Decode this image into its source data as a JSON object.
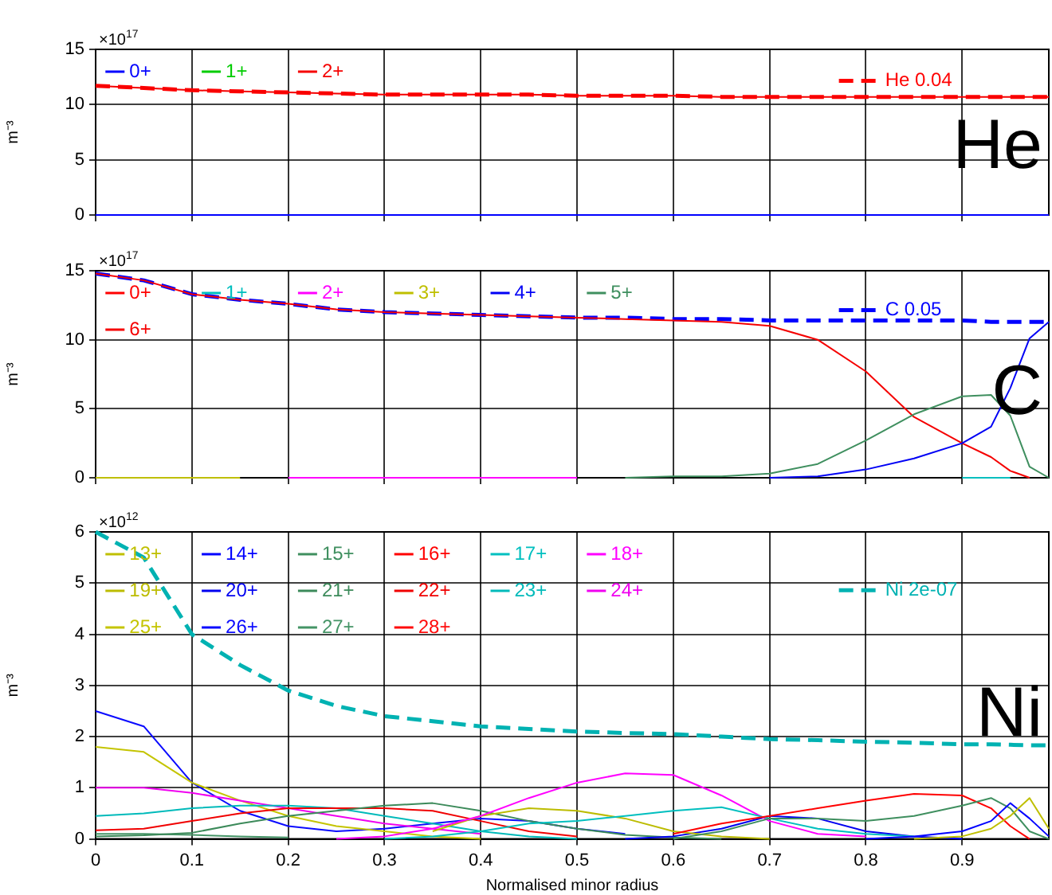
{
  "chart_data": [
    {
      "type": "line",
      "ylabel": "m⁻³",
      "annotations": [
        "×10$^{17}$",
        "He"
      ],
      "x": [
        0,
        0.05,
        0.1,
        0.15,
        0.2,
        0.25,
        0.3,
        0.35,
        0.4,
        0.45,
        0.5,
        0.55,
        0.6,
        0.65,
        0.7,
        0.75,
        0.8,
        0.85,
        0.9,
        0.93,
        0.95,
        0.97,
        0.99
      ],
      "xlim": [
        0,
        0.99
      ],
      "xticks": [
        0,
        0.1,
        0.2,
        0.3,
        0.4,
        0.5,
        0.6,
        0.7,
        0.8,
        0.9
      ],
      "ylim": [
        0,
        15
      ],
      "yticks": [
        0,
        5,
        10,
        15
      ],
      "grid": true,
      "legend": "top",
      "marker": "none",
      "tick_labels": "y",
      "series": [
        {
          "name": "He 0.04",
          "color": "#ff0000",
          "line_style": "dashed",
          "values": [
            11.7,
            11.5,
            11.3,
            11.2,
            11.1,
            11.0,
            10.9,
            10.9,
            10.9,
            10.9,
            10.8,
            10.8,
            10.8,
            10.7,
            10.7,
            10.7,
            10.7,
            10.7,
            10.7,
            10.7,
            10.7,
            10.7,
            10.7
          ]
        },
        {
          "name": "0+",
          "color": "#0000ff",
          "line_style": "solid",
          "values": [
            0,
            0,
            0,
            0,
            0,
            0,
            0,
            0,
            0,
            0,
            0,
            0,
            0,
            0,
            0,
            0,
            0,
            0,
            0,
            0,
            0,
            0,
            0
          ]
        },
        {
          "name": "1+",
          "color": "#00cc00",
          "line_style": "solid",
          "values": [
            null,
            null,
            null,
            null,
            null,
            null,
            null,
            null,
            null,
            null,
            null,
            null,
            null,
            null,
            null,
            null,
            null,
            null,
            null,
            null,
            null,
            null,
            null
          ]
        },
        {
          "name": "2+",
          "color": "#f50000",
          "line_style": "solid",
          "values": [
            11.7,
            11.5,
            11.3,
            11.2,
            11.1,
            11.0,
            10.9,
            10.9,
            10.9,
            10.9,
            10.8,
            10.8,
            10.8,
            10.7,
            10.7,
            10.7,
            10.7,
            10.7,
            10.7,
            10.7,
            10.7,
            10.7,
            10.7
          ]
        }
      ]
    },
    {
      "type": "line",
      "ylabel": "m⁻³",
      "annotations": [
        "×10$^{17}$",
        "C"
      ],
      "x": [
        0,
        0.05,
        0.1,
        0.15,
        0.2,
        0.25,
        0.3,
        0.35,
        0.4,
        0.45,
        0.5,
        0.55,
        0.6,
        0.65,
        0.7,
        0.75,
        0.8,
        0.85,
        0.9,
        0.93,
        0.95,
        0.97,
        0.99
      ],
      "xlim": [
        0,
        0.99
      ],
      "xticks": [
        0,
        0.1,
        0.2,
        0.3,
        0.4,
        0.5,
        0.6,
        0.7,
        0.8,
        0.9
      ],
      "ylim": [
        0,
        15
      ],
      "yticks": [
        0,
        5,
        10,
        15
      ],
      "grid": true,
      "legend": "top",
      "marker": "none",
      "tick_labels": "y",
      "series": [
        {
          "name": "C 0.05",
          "color": "#0000ff",
          "line_style": "dashed",
          "values": [
            14.8,
            14.3,
            13.3,
            12.9,
            12.6,
            12.2,
            12.0,
            11.9,
            11.8,
            11.7,
            11.6,
            11.6,
            11.5,
            11.5,
            11.4,
            11.4,
            11.4,
            11.4,
            11.4,
            11.3,
            11.3,
            11.3,
            11.3
          ]
        },
        {
          "name": "0+",
          "color": "#ff0000",
          "line_style": "solid",
          "values": [
            null,
            null,
            null,
            null,
            null,
            null,
            null,
            null,
            null,
            null,
            null,
            null,
            null,
            null,
            null,
            null,
            null,
            null,
            null,
            null,
            null,
            null,
            null
          ]
        },
        {
          "name": "1+",
          "color": "#00bfbf",
          "line_style": "solid",
          "values": [
            null,
            null,
            null,
            null,
            null,
            null,
            null,
            null,
            null,
            null,
            null,
            null,
            null,
            null,
            null,
            null,
            null,
            null,
            0,
            0,
            0,
            null,
            null
          ]
        },
        {
          "name": "2+",
          "color": "#ff00ff",
          "line_style": "solid",
          "values": [
            null,
            null,
            null,
            null,
            0,
            0,
            0,
            0,
            0,
            0,
            0,
            null,
            null,
            null,
            null,
            null,
            null,
            null,
            null,
            null,
            null,
            null,
            null
          ]
        },
        {
          "name": "3+",
          "color": "#bfbf00",
          "line_style": "solid",
          "values": [
            0,
            0,
            0,
            0,
            null,
            null,
            null,
            null,
            null,
            null,
            null,
            null,
            null,
            null,
            null,
            null,
            null,
            null,
            null,
            null,
            null,
            null,
            null
          ]
        },
        {
          "name": "4+",
          "color": "#0000f5",
          "line_style": "solid",
          "values": [
            null,
            null,
            null,
            null,
            null,
            null,
            null,
            null,
            null,
            null,
            null,
            null,
            null,
            null,
            0,
            0.1,
            0.6,
            1.4,
            2.5,
            3.7,
            6.5,
            10.1,
            11.3
          ]
        },
        {
          "name": "5+",
          "color": "#3f8f5f",
          "line_style": "solid",
          "values": [
            null,
            null,
            null,
            null,
            null,
            null,
            null,
            null,
            null,
            null,
            null,
            0,
            0.1,
            0.1,
            0.3,
            1.0,
            2.7,
            4.6,
            5.9,
            6.0,
            4.5,
            0.8,
            0
          ]
        },
        {
          "name": "6+",
          "color": "#f50000",
          "line_style": "solid",
          "values": [
            14.8,
            14.3,
            13.3,
            12.9,
            12.6,
            12.2,
            12.0,
            11.9,
            11.8,
            11.7,
            11.6,
            11.5,
            11.4,
            11.3,
            11.0,
            10.0,
            7.7,
            4.4,
            2.5,
            1.5,
            0.5,
            0,
            null
          ]
        }
      ]
    },
    {
      "type": "line",
      "ylabel": "m⁻³",
      "xlabel": "Normalised minor radius",
      "annotations": [
        "×10$^{12}$",
        "Ni"
      ],
      "x": [
        0,
        0.05,
        0.1,
        0.15,
        0.2,
        0.25,
        0.3,
        0.35,
        0.4,
        0.45,
        0.5,
        0.55,
        0.6,
        0.65,
        0.7,
        0.75,
        0.8,
        0.85,
        0.9,
        0.93,
        0.95,
        0.97,
        0.99
      ],
      "xlim": [
        0,
        0.99
      ],
      "xticks": [
        0,
        0.1,
        0.2,
        0.3,
        0.4,
        0.5,
        0.6,
        0.7,
        0.8,
        0.9
      ],
      "ylim": [
        0,
        6
      ],
      "yticks": [
        0,
        1,
        2,
        3,
        4,
        5,
        6
      ],
      "grid": true,
      "legend": "top",
      "marker": "none",
      "series": [
        {
          "name": "Ni 2e-07",
          "color": "#00b2b2",
          "line_style": "dashed",
          "values": [
            6.0,
            5.5,
            4.0,
            3.4,
            2.9,
            2.6,
            2.4,
            2.3,
            2.2,
            2.15,
            2.1,
            2.07,
            2.05,
            2.0,
            1.95,
            1.93,
            1.9,
            1.88,
            1.85,
            1.85,
            1.84,
            1.83,
            1.83
          ]
        },
        {
          "name": "13+",
          "color": "#bfbf00",
          "line_style": "solid",
          "values": [
            null,
            null,
            null,
            null,
            null,
            null,
            null,
            null,
            null,
            null,
            null,
            null,
            null,
            null,
            null,
            null,
            null,
            0,
            0.05,
            0.2,
            0.45,
            0.8,
            0.2
          ]
        },
        {
          "name": "14+",
          "color": "#0000ff",
          "line_style": "solid",
          "values": [
            null,
            null,
            null,
            null,
            null,
            null,
            null,
            null,
            null,
            null,
            null,
            null,
            null,
            null,
            null,
            null,
            0,
            0.05,
            0.15,
            0.35,
            0.7,
            0.4,
            0.05
          ]
        },
        {
          "name": "15+",
          "color": "#3f8f5f",
          "line_style": "solid",
          "values": [
            null,
            null,
            null,
            null,
            null,
            null,
            null,
            null,
            null,
            null,
            null,
            null,
            0,
            0.15,
            0.4,
            0.4,
            0.35,
            0.45,
            0.65,
            0.8,
            0.6,
            0.15,
            0
          ]
        },
        {
          "name": "16+",
          "color": "#ff0000",
          "line_style": "solid",
          "values": [
            null,
            null,
            null,
            null,
            null,
            null,
            null,
            null,
            null,
            null,
            null,
            null,
            0.1,
            0.3,
            0.45,
            0.6,
            0.75,
            0.88,
            0.85,
            0.6,
            0.25,
            0,
            null
          ]
        },
        {
          "name": "17+",
          "color": "#00bfbf",
          "line_style": "solid",
          "values": [
            null,
            null,
            null,
            null,
            null,
            null,
            0,
            0.05,
            0.15,
            0.3,
            0.35,
            0.45,
            0.55,
            0.62,
            0.4,
            0.2,
            0.1,
            0.05,
            null,
            null,
            null,
            null,
            null
          ]
        },
        {
          "name": "18+",
          "color": "#ff00ff",
          "line_style": "solid",
          "values": [
            null,
            null,
            null,
            null,
            null,
            0,
            0.05,
            0.2,
            0.45,
            0.8,
            1.1,
            1.28,
            1.25,
            0.85,
            0.35,
            0.1,
            0.05,
            null,
            null,
            null,
            null,
            null,
            null
          ]
        },
        {
          "name": "19+",
          "color": "#bcbc00",
          "line_style": "solid",
          "values": [
            null,
            null,
            null,
            null,
            null,
            null,
            null,
            0.15,
            0.45,
            0.6,
            0.55,
            0.4,
            0.15,
            0.05,
            0,
            null,
            null,
            null,
            null,
            null,
            null,
            null,
            null
          ]
        },
        {
          "name": "20+",
          "color": "#0000f0",
          "line_style": "solid",
          "values": [
            null,
            null,
            null,
            null,
            null,
            null,
            null,
            null,
            null,
            null,
            null,
            0,
            0.05,
            0.2,
            0.45,
            0.4,
            0.15,
            0.05,
            0,
            null,
            null,
            null,
            null
          ]
        },
        {
          "name": "21+",
          "color": "#3c8a5a",
          "line_style": "solid",
          "values": [
            0.05,
            0.07,
            0.12,
            0.3,
            0.45,
            0.55,
            0.65,
            0.7,
            0.55,
            0.35,
            0.2,
            0.08,
            0.03,
            0,
            null,
            null,
            null,
            null,
            null,
            null,
            null,
            null,
            null
          ]
        },
        {
          "name": "22+",
          "color": "#f00000",
          "line_style": "solid",
          "values": [
            0.17,
            0.2,
            0.35,
            0.5,
            0.6,
            0.6,
            0.6,
            0.55,
            0.35,
            0.15,
            0.05,
            null,
            null,
            null,
            null,
            null,
            null,
            null,
            null,
            null,
            null,
            null,
            null
          ]
        },
        {
          "name": "23+",
          "color": "#00baba",
          "line_style": "solid",
          "values": [
            0.45,
            0.5,
            0.6,
            0.65,
            0.65,
            0.6,
            0.45,
            0.3,
            0.15,
            0.05,
            0,
            null,
            null,
            null,
            null,
            null,
            null,
            null,
            null,
            null,
            null,
            null,
            null
          ]
        },
        {
          "name": "24+",
          "color": "#f000f0",
          "line_style": "solid",
          "values": [
            1.0,
            1.0,
            0.9,
            0.75,
            0.6,
            0.45,
            0.3,
            0.2,
            0.1,
            null,
            null,
            null,
            null,
            null,
            null,
            null,
            null,
            null,
            null,
            null,
            null,
            null,
            null
          ]
        },
        {
          "name": "25+",
          "color": "#c4c400",
          "line_style": "solid",
          "values": [
            1.8,
            1.7,
            1.1,
            0.75,
            0.45,
            0.25,
            0.15,
            0.05,
            0,
            null,
            null,
            null,
            null,
            null,
            null,
            null,
            null,
            null,
            null,
            null,
            null,
            null,
            null
          ]
        },
        {
          "name": "26+",
          "color": "#0a0aff",
          "line_style": "solid",
          "values": [
            2.5,
            2.2,
            1.1,
            0.55,
            0.25,
            0.15,
            0.2,
            0.3,
            0.4,
            0.35,
            0.2,
            0.1,
            null,
            null,
            null,
            null,
            null,
            null,
            null,
            null,
            null,
            null,
            null
          ]
        },
        {
          "name": "27+",
          "color": "#449466",
          "line_style": "solid",
          "values": [
            0.1,
            0.1,
            0.08,
            0.05,
            0.03,
            null,
            null,
            null,
            null,
            null,
            null,
            null,
            null,
            null,
            null,
            null,
            null,
            null,
            null,
            null,
            null,
            null,
            null
          ]
        },
        {
          "name": "28+",
          "color": "#ff0a0a",
          "line_style": "solid",
          "values": [
            null,
            null,
            null,
            null,
            null,
            null,
            null,
            null,
            null,
            null,
            null,
            null,
            null,
            null,
            null,
            null,
            null,
            null,
            null,
            null,
            null,
            null,
            null
          ]
        }
      ]
    }
  ]
}
